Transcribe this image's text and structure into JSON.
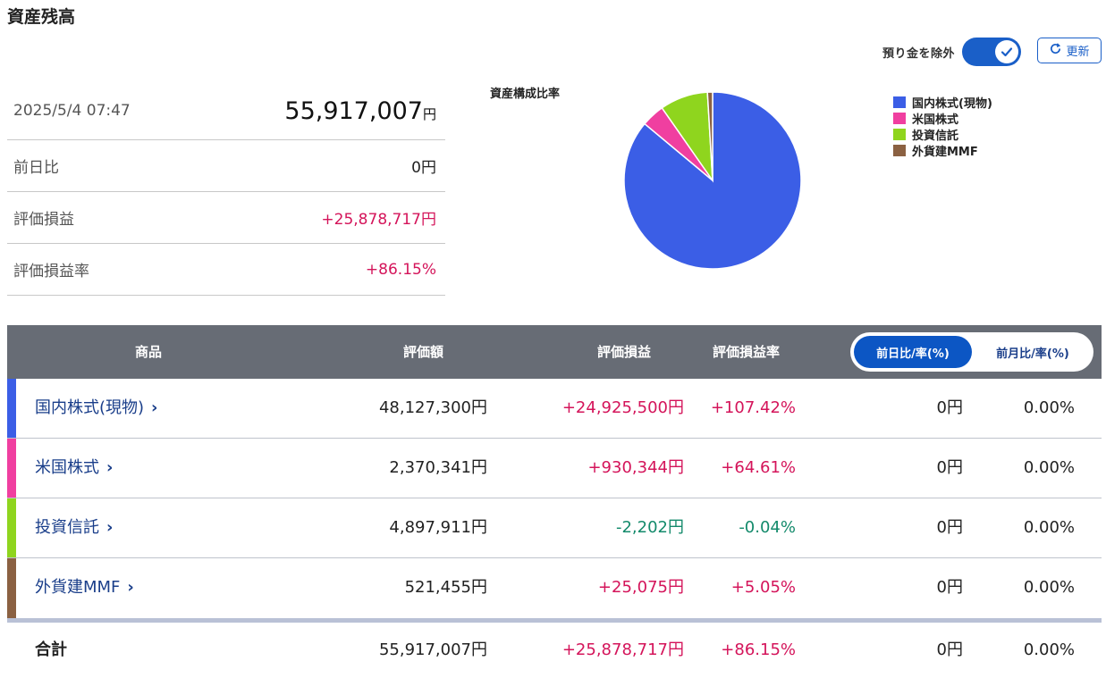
{
  "page": {
    "title": "資産残高"
  },
  "controls": {
    "exclude_cash_label": "預り金を除外",
    "exclude_cash_on": true,
    "refresh_label": "更新"
  },
  "summary": {
    "datetime": "2025/5/4 07:47",
    "total_value": "55,917,007",
    "total_unit": "円",
    "rows": [
      {
        "label": "前日比",
        "value": "0円",
        "tone": "neutral"
      },
      {
        "label": "評価損益",
        "value": "+25,878,717円",
        "tone": "pos"
      },
      {
        "label": "評価損益率",
        "value": "+86.15%",
        "tone": "pos"
      }
    ]
  },
  "chart_data": {
    "type": "pie",
    "title": "資産構成比率",
    "labels": [
      "国内株式(現物)",
      "米国株式",
      "投資信託",
      "外貨建MMF"
    ],
    "values": [
      48127300,
      2370341,
      4897911,
      521455
    ],
    "colors": [
      "#3b5ee6",
      "#f03fa0",
      "#8fd51e",
      "#8b6142"
    ],
    "legend_position": "right"
  },
  "table": {
    "headers": {
      "product": "商品",
      "value": "評価額",
      "pl": "評価損益",
      "pl_rate": "評価損益率"
    },
    "toggle": {
      "active": "前日比/率(%)",
      "inactive": "前月比/率(%)"
    },
    "rows": [
      {
        "name": "国内株式(現物)",
        "color": "#3b5ee6",
        "value": "48,127,300円",
        "pl": "+24,925,500円",
        "pl_rate": "+107.42%",
        "day_change": "0円",
        "day_rate": "0.00%",
        "tone": "pos"
      },
      {
        "name": "米国株式",
        "color": "#f03fa0",
        "value": "2,370,341円",
        "pl": "+930,344円",
        "pl_rate": "+64.61%",
        "day_change": "0円",
        "day_rate": "0.00%",
        "tone": "pos"
      },
      {
        "name": "投資信託",
        "color": "#8fd51e",
        "value": "4,897,911円",
        "pl": "-2,202円",
        "pl_rate": "-0.04%",
        "day_change": "0円",
        "day_rate": "0.00%",
        "tone": "neg"
      },
      {
        "name": "外貨建MMF",
        "color": "#8b6142",
        "value": "521,455円",
        "pl": "+25,075円",
        "pl_rate": "+5.05%",
        "day_change": "0円",
        "day_rate": "0.00%",
        "tone": "pos"
      }
    ],
    "total": {
      "label": "合計",
      "value": "55,917,007円",
      "pl": "+25,878,717円",
      "pl_rate": "+86.15%",
      "day_change": "0円",
      "day_rate": "0.00%"
    }
  }
}
